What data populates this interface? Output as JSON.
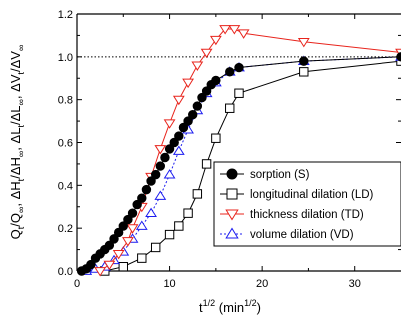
{
  "chart_data": {
    "type": "line",
    "title": "",
    "xlabel": "t^1/2 (min^1/2)",
    "xlabel_parts": {
      "base": "t",
      "sup": "1/2",
      "unit_open": " (min",
      "unit_sup": "1/2",
      "unit_close": ")"
    },
    "ylabel": "Q_t/Q_∞, ΔH_t/ΔH_∞, ΔL_t/ΔL_∞, ΔV_t/ΔV_∞",
    "xlim": [
      0,
      35
    ],
    "ylim": [
      0.0,
      1.2
    ],
    "xticks": [
      0,
      10,
      20,
      30
    ],
    "yticks": [
      0.0,
      0.2,
      0.4,
      0.6,
      0.8,
      1.0,
      1.2
    ],
    "ytick_labels": [
      "0.0",
      "0.2",
      "0.4",
      "0.6",
      "0.8",
      "1.0",
      "1.2"
    ],
    "reference_line": {
      "y": 1.0,
      "style": "dotted"
    },
    "legend_position": "center-right",
    "series": [
      {
        "name": "sorption (S)",
        "marker": "filled-circle",
        "color": "#000000",
        "line_style": "solid",
        "x": [
          0.5,
          1.0,
          1.5,
          2.0,
          2.5,
          3.0,
          3.5,
          4.0,
          4.5,
          5.0,
          5.5,
          6.0,
          6.5,
          7.0,
          7.5,
          8.0,
          8.5,
          9.0,
          9.5,
          10.0,
          10.5,
          11.0,
          11.5,
          12.0,
          12.5,
          13.0,
          13.5,
          14.0,
          14.5,
          15.0,
          16.5,
          17.5,
          24.5,
          35.0
        ],
        "y": [
          0.0,
          0.01,
          0.03,
          0.06,
          0.08,
          0.1,
          0.12,
          0.15,
          0.18,
          0.21,
          0.24,
          0.27,
          0.31,
          0.34,
          0.38,
          0.42,
          0.45,
          0.49,
          0.53,
          0.57,
          0.6,
          0.63,
          0.67,
          0.7,
          0.73,
          0.77,
          0.81,
          0.84,
          0.87,
          0.89,
          0.93,
          0.95,
          0.98,
          1.0
        ]
      },
      {
        "name": "longitudinal dilation (LD)",
        "marker": "open-square",
        "color": "#000000",
        "line_style": "solid",
        "x": [
          3.0,
          5.0,
          7.0,
          8.5,
          10.0,
          11.0,
          12.0,
          13.0,
          14.0,
          15.0,
          16.5,
          17.5,
          24.5,
          35.0
        ],
        "y": [
          0.0,
          0.02,
          0.06,
          0.11,
          0.17,
          0.21,
          0.27,
          0.36,
          0.5,
          0.62,
          0.76,
          0.83,
          0.93,
          0.98
        ]
      },
      {
        "name": "thickness dilation (TD)",
        "marker": "open-triangle-down",
        "color": "#e8241c",
        "line_style": "solid",
        "x": [
          2.5,
          3.5,
          4.5,
          5.5,
          6.0,
          7.0,
          8.0,
          9.0,
          10.0,
          11.0,
          12.0,
          13.0,
          14.0,
          15.0,
          16.0,
          17.0,
          18.0,
          24.5,
          35.0
        ],
        "y": [
          0.0,
          0.03,
          0.08,
          0.14,
          0.2,
          0.3,
          0.44,
          0.57,
          0.69,
          0.8,
          0.88,
          0.96,
          1.02,
          1.08,
          1.13,
          1.13,
          1.11,
          1.07,
          1.02
        ]
      },
      {
        "name": "volume dilation (VD)",
        "marker": "open-triangle-up",
        "color": "#1c1cf0",
        "line_style": "dotted",
        "x": [
          1.0,
          2.0,
          3.0,
          4.0,
          5.0,
          6.0,
          7.0,
          8.0,
          9.0,
          10.0,
          11.0,
          12.0,
          13.0,
          14.0,
          15.0,
          16.5,
          17.5,
          24.5,
          35.0
        ],
        "y": [
          0.0,
          0.01,
          0.02,
          0.05,
          0.09,
          0.15,
          0.21,
          0.27,
          0.35,
          0.45,
          0.56,
          0.66,
          0.75,
          0.83,
          0.88,
          0.93,
          0.95,
          0.98,
          1.0
        ]
      }
    ]
  }
}
